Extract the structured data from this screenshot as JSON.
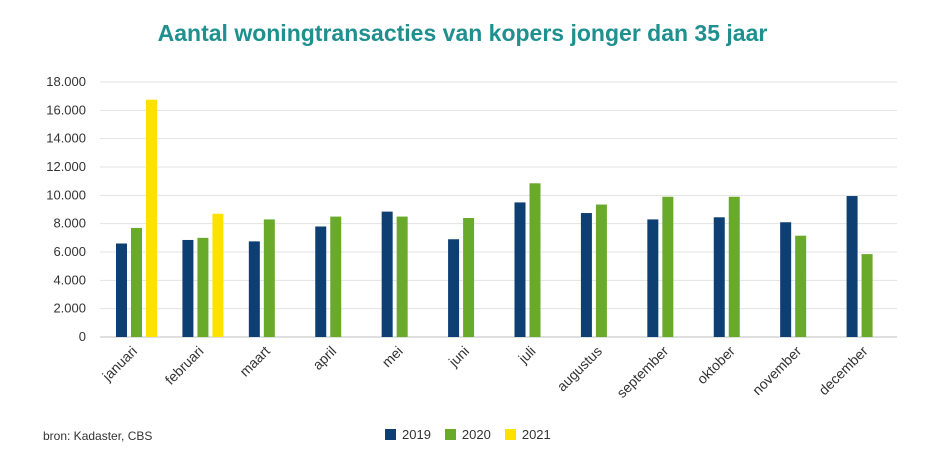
{
  "chart_data": {
    "type": "bar",
    "title": "Aantal woningtransacties van kopers jonger dan 35 jaar",
    "source": "bron: Kadaster, CBS",
    "categories": [
      "januari",
      "februari",
      "maart",
      "april",
      "mei",
      "juni",
      "juli",
      "augustus",
      "september",
      "oktober",
      "november",
      "december"
    ],
    "yticks": [
      "0",
      "2.000",
      "4.000",
      "6.000",
      "8.000",
      "10.000",
      "12.000",
      "14.000",
      "16.000",
      "18.000"
    ],
    "ylim": [
      0,
      18000
    ],
    "grid": true,
    "legend_position": "bottom",
    "series": [
      {
        "name": "2019",
        "color": "#0d3f73",
        "values": [
          6600,
          6850,
          6750,
          7800,
          8850,
          6900,
          9500,
          8750,
          8300,
          8450,
          8100,
          9950
        ]
      },
      {
        "name": "2020",
        "color": "#6aaa2a",
        "values": [
          7700,
          7000,
          8300,
          8500,
          8500,
          8400,
          10850,
          9350,
          9900,
          9900,
          7150,
          5850
        ]
      },
      {
        "name": "2021",
        "color": "#ffe100",
        "values": [
          16750,
          8700,
          null,
          null,
          null,
          null,
          null,
          null,
          null,
          null,
          null,
          null
        ]
      }
    ]
  }
}
